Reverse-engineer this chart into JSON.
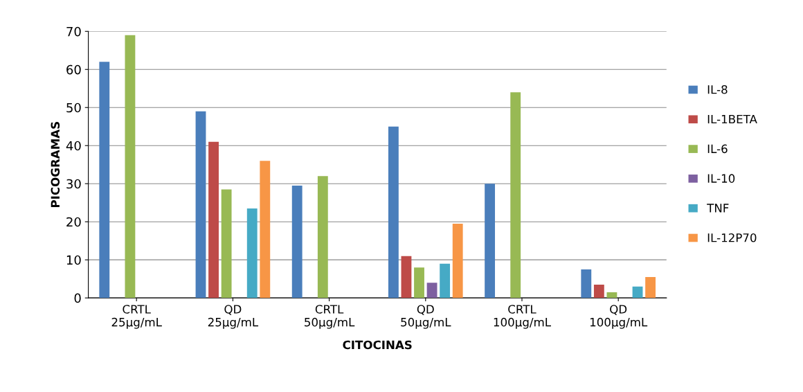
{
  "chart_data": {
    "type": "bar",
    "xlabel": "CITOCINAS",
    "ylabel": "PICOGRAMAS",
    "categories": [
      "CRTL\n25µg/mL",
      "QD\n25µg/mL",
      "CRTL\n50µg/mL",
      "QD\n50µg/mL",
      "CRTL\n100µg/mL",
      "QD\n100µg/mL"
    ],
    "series": [
      {
        "name": "IL-8",
        "color": "#4a7ebb",
        "values": [
          62,
          49,
          29.5,
          45,
          30,
          7.5
        ]
      },
      {
        "name": "IL-1BETA",
        "color": "#be4b48",
        "values": [
          0,
          41,
          0,
          11,
          0,
          3.5
        ]
      },
      {
        "name": "IL-6",
        "color": "#98b954",
        "values": [
          69,
          28.5,
          32,
          8,
          54,
          1.5
        ]
      },
      {
        "name": "IL-10",
        "color": "#7d60a0",
        "values": [
          0,
          0,
          0,
          4,
          0,
          0
        ]
      },
      {
        "name": "TNF",
        "color": "#46aac5",
        "values": [
          0,
          23.5,
          0,
          9,
          0,
          3
        ]
      },
      {
        "name": "IL-12P70",
        "color": "#f79646",
        "values": [
          0,
          36,
          0,
          19.5,
          0,
          5.5
        ]
      }
    ],
    "ylim": [
      0,
      70
    ],
    "yticks": [
      0,
      10,
      20,
      30,
      40,
      50,
      60,
      70
    ],
    "grid": "y",
    "legend": "right"
  }
}
